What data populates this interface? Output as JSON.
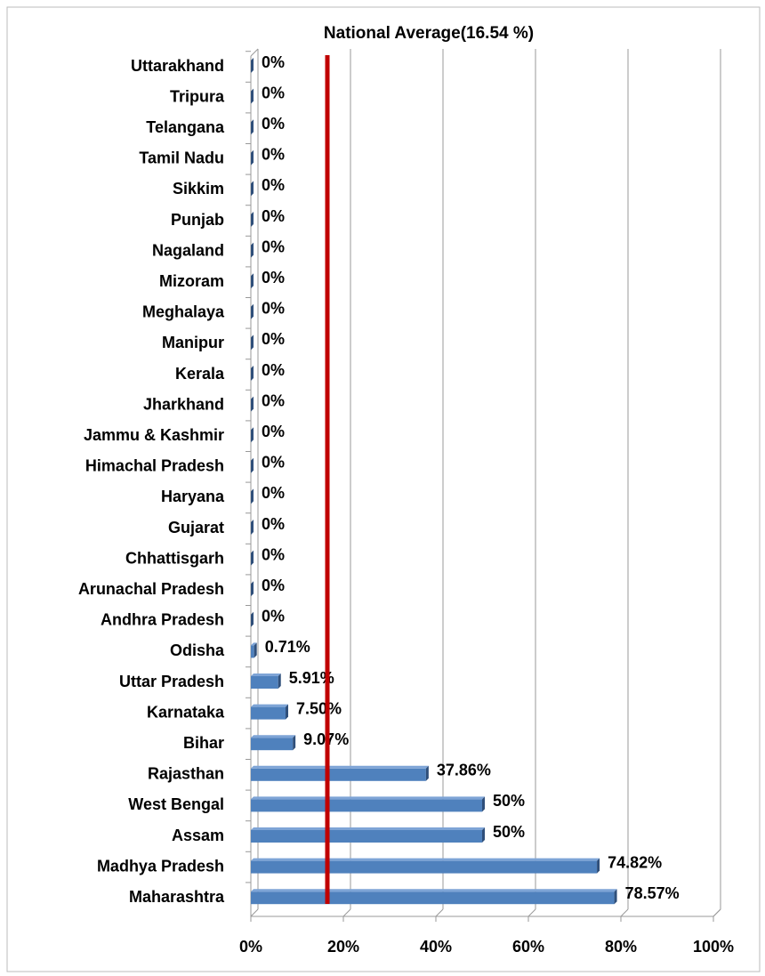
{
  "chart_data": {
    "type": "bar",
    "orientation": "horizontal",
    "title": "National Average(16.54 %)",
    "national_average": 16.54,
    "categories": [
      "Uttarakhand",
      "Tripura",
      "Telangana",
      "Tamil Nadu",
      "Sikkim",
      "Punjab",
      "Nagaland",
      "Mizoram",
      "Meghalaya",
      "Manipur",
      "Kerala",
      "Jharkhand",
      "Jammu & Kashmir",
      "Himachal Pradesh",
      "Haryana",
      "Gujarat",
      "Chhattisgarh",
      "Arunachal Pradesh",
      "Andhra Pradesh",
      "Odisha",
      "Uttar Pradesh",
      "Karnataka",
      "Bihar",
      "Rajasthan",
      "West Bengal",
      "Assam",
      "Madhya Pradesh",
      "Maharashtra"
    ],
    "values": [
      0,
      0,
      0,
      0,
      0,
      0,
      0,
      0,
      0,
      0,
      0,
      0,
      0,
      0,
      0,
      0,
      0,
      0,
      0,
      0.71,
      5.91,
      7.5,
      9.07,
      37.86,
      50,
      50,
      74.82,
      78.57
    ],
    "value_labels": [
      "0%",
      "0%",
      "0%",
      "0%",
      "0%",
      "0%",
      "0%",
      "0%",
      "0%",
      "0%",
      "0%",
      "0%",
      "0%",
      "0%",
      "0%",
      "0%",
      "0%",
      "0%",
      "0%",
      "0.71%",
      "5.91%",
      "7.50%",
      "9.07%",
      "37.86%",
      "50%",
      "50%",
      "74.82%",
      "78.57%"
    ],
    "color": "#4f81bd",
    "line_color": "#c00000",
    "xlim": [
      0,
      100
    ],
    "xticks": [
      {
        "value": 0,
        "label": "0%"
      },
      {
        "value": 20,
        "label": "20%"
      },
      {
        "value": 40,
        "label": "40%"
      },
      {
        "value": 60,
        "label": "60%"
      },
      {
        "value": 80,
        "label": "80%"
      },
      {
        "value": 100,
        "label": "100%"
      }
    ],
    "grid": true
  }
}
